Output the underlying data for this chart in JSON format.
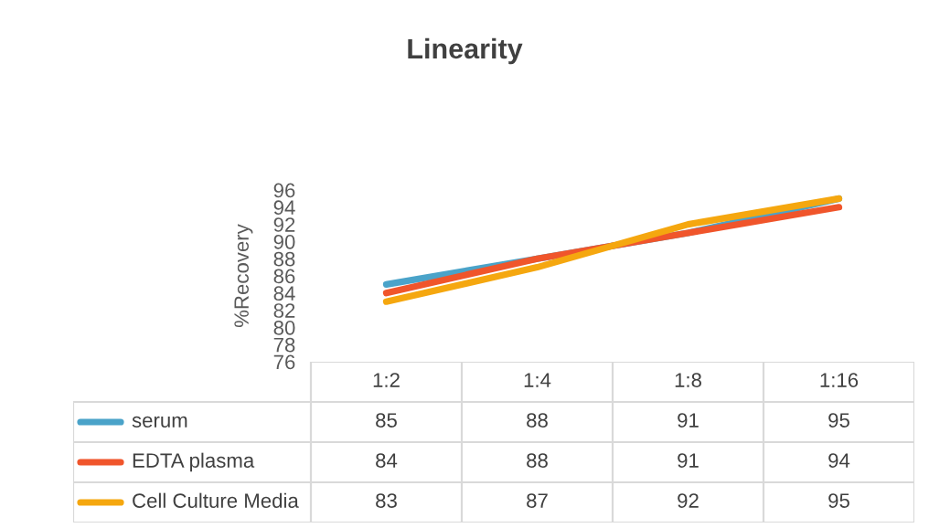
{
  "chart_data": {
    "type": "line",
    "title": "Linearity",
    "ylabel": "%Recovery",
    "categories": [
      "1:2",
      "1:4",
      "1:8",
      "1:16"
    ],
    "series": [
      {
        "name": "serum",
        "color": "#4aa3c9",
        "values": [
          85,
          88,
          91,
          95
        ]
      },
      {
        "name": "EDTA plasma",
        "color": "#f0552b",
        "values": [
          84,
          88,
          91,
          94
        ]
      },
      {
        "name": "Cell Culture Media",
        "color": "#f5a70f",
        "values": [
          83,
          87,
          92,
          95
        ]
      }
    ],
    "ylim": [
      76,
      96
    ],
    "yticks": [
      76,
      78,
      80,
      82,
      84,
      86,
      88,
      90,
      92,
      94,
      96
    ],
    "grid": false,
    "legend": "bottom",
    "data_labels": true,
    "marker": "none",
    "line_style": "solid"
  }
}
